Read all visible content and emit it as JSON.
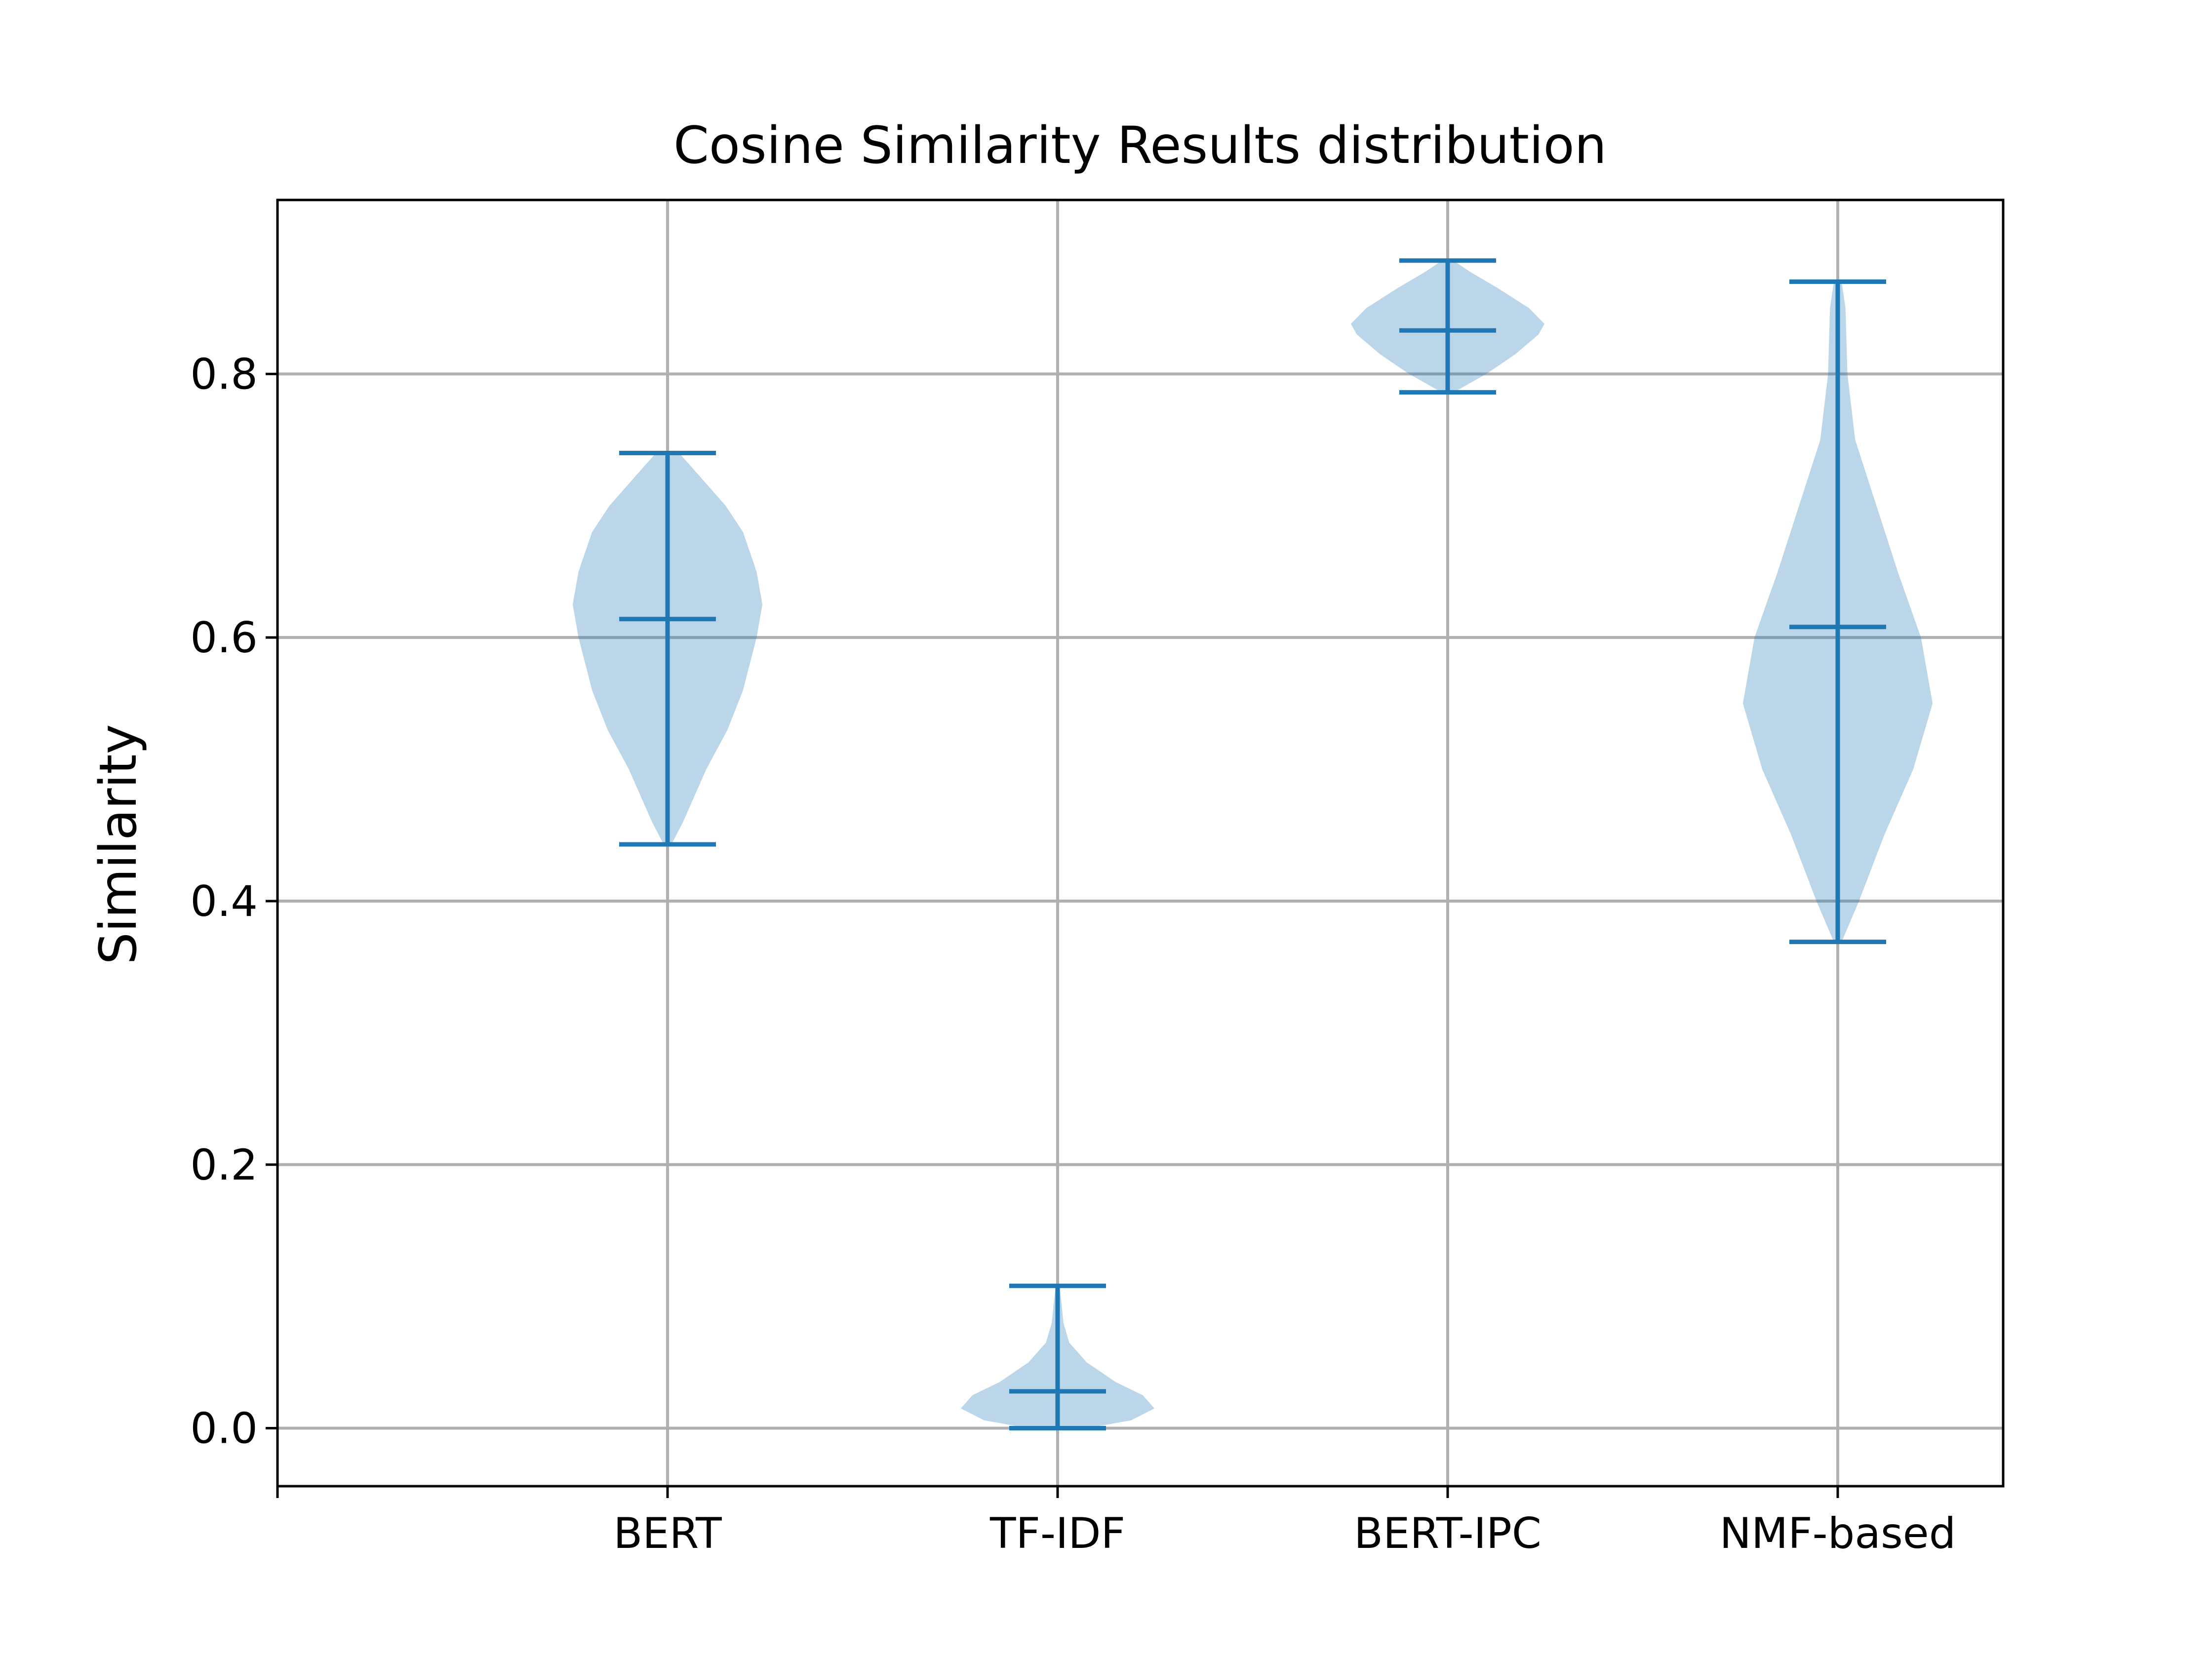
{
  "chart_data": {
    "type": "violin",
    "title": "Cosine Similarity Results distribution",
    "xlabel": "",
    "ylabel": "Similarity",
    "ylim": [
      -0.044,
      0.932
    ],
    "yticks": [
      0.0,
      0.2,
      0.4,
      0.6,
      0.8
    ],
    "ytick_labels": [
      "0.0",
      "0.2",
      "0.4",
      "0.6",
      "0.8"
    ],
    "grid": true,
    "color": "#1f77b4",
    "categories": [
      "BERT",
      "TF-IDF",
      "BERT-IPC",
      "NMF-based"
    ],
    "series": [
      {
        "min": 0.443,
        "max": 0.74,
        "median": 0.614,
        "profile": [
          [
            0.443,
            0.04
          ],
          [
            0.46,
            0.16
          ],
          [
            0.5,
            0.4
          ],
          [
            0.53,
            0.62
          ],
          [
            0.56,
            0.78
          ],
          [
            0.6,
            0.92
          ],
          [
            0.625,
            0.98
          ],
          [
            0.65,
            0.92
          ],
          [
            0.68,
            0.78
          ],
          [
            0.7,
            0.6
          ],
          [
            0.72,
            0.36
          ],
          [
            0.74,
            0.12
          ]
        ]
      },
      {
        "min": 0.0,
        "max": 0.108,
        "median": 0.028,
        "profile": [
          [
            0.0,
            0.3
          ],
          [
            0.006,
            0.76
          ],
          [
            0.015,
            1.0
          ],
          [
            0.025,
            0.88
          ],
          [
            0.035,
            0.6
          ],
          [
            0.05,
            0.3
          ],
          [
            0.065,
            0.12
          ],
          [
            0.08,
            0.06
          ],
          [
            0.095,
            0.04
          ],
          [
            0.108,
            0.02
          ]
        ]
      },
      {
        "min": 0.786,
        "max": 0.886,
        "median": 0.833,
        "profile": [
          [
            0.786,
            0.06
          ],
          [
            0.8,
            0.4
          ],
          [
            0.815,
            0.7
          ],
          [
            0.83,
            0.94
          ],
          [
            0.838,
            1.0
          ],
          [
            0.85,
            0.84
          ],
          [
            0.865,
            0.52
          ],
          [
            0.878,
            0.22
          ],
          [
            0.886,
            0.06
          ]
        ]
      },
      {
        "min": 0.369,
        "max": 0.87,
        "median": 0.608,
        "profile": [
          [
            0.369,
            0.04
          ],
          [
            0.4,
            0.22
          ],
          [
            0.45,
            0.48
          ],
          [
            0.5,
            0.78
          ],
          [
            0.55,
            0.98
          ],
          [
            0.6,
            0.86
          ],
          [
            0.65,
            0.62
          ],
          [
            0.7,
            0.4
          ],
          [
            0.75,
            0.18
          ],
          [
            0.8,
            0.1
          ],
          [
            0.85,
            0.08
          ],
          [
            0.87,
            0.04
          ]
        ]
      }
    ]
  }
}
